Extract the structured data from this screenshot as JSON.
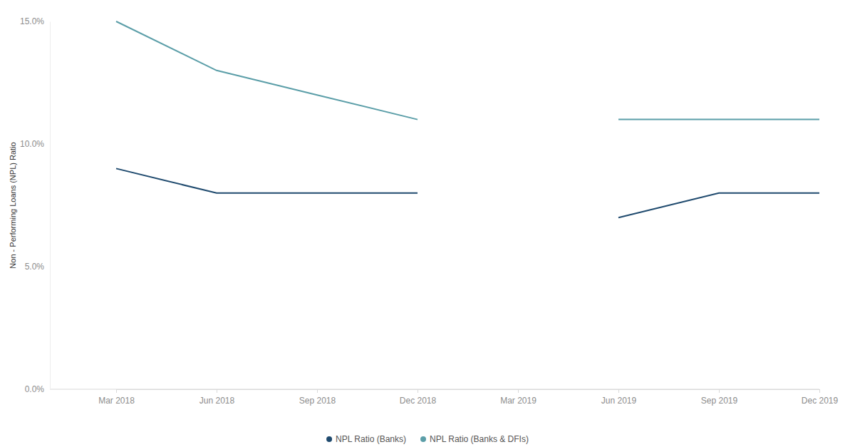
{
  "chart_data": {
    "type": "line",
    "y_label": "Non - Performing Loans (NPL) Ratio",
    "categories": [
      "Mar 2018",
      "Jun 2018",
      "Sep 2018",
      "Dec 2018",
      "Mar 2019",
      "Jun 2019",
      "Sep 2019",
      "Dec 2019"
    ],
    "series": [
      {
        "name": "NPL Ratio (Banks)",
        "color": "#1f4a6e",
        "values": [
          9,
          8,
          8,
          8,
          null,
          7,
          8,
          8
        ]
      },
      {
        "name": "NPL Ratio (Banks & DFIs)",
        "color": "#5b9ea8",
        "values": [
          15,
          13,
          12,
          11,
          null,
          11,
          11,
          11
        ]
      }
    ],
    "ylim": [
      0,
      15
    ],
    "yticks": [
      {
        "value": 0,
        "label": "0.0%"
      },
      {
        "value": 5,
        "label": "5.0%"
      },
      {
        "value": 10,
        "label": "10.0%"
      },
      {
        "value": 15,
        "label": "15.0%"
      }
    ],
    "grid": false,
    "legend": "bottom"
  }
}
